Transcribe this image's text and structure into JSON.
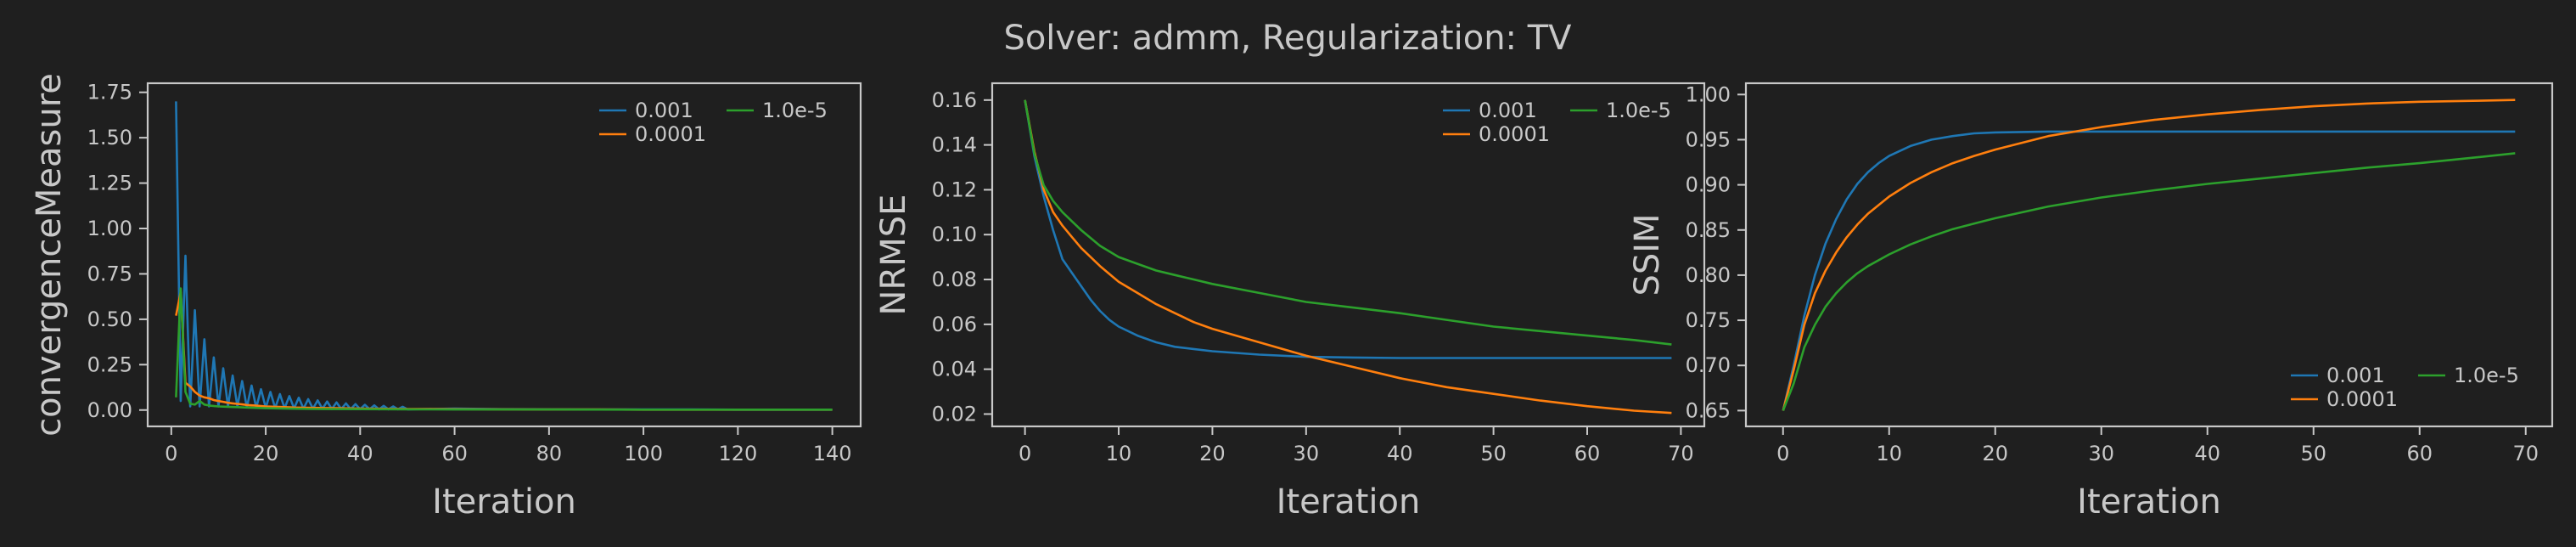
{
  "suptitle": "Solver: admm, Regularization: TV",
  "chart_data": [
    {
      "type": "line",
      "title": "",
      "xlabel": "Iteration",
      "ylabel": "convergenceMeasure",
      "xlim": [
        -5,
        146
      ],
      "ylim": [
        -0.09,
        1.8
      ],
      "xticks": [
        0,
        20,
        40,
        60,
        80,
        100,
        120,
        140
      ],
      "xtick_labels": [
        "0",
        "20",
        "40",
        "60",
        "80",
        "100",
        "120",
        "140"
      ],
      "yticks": [
        0.0,
        0.25,
        0.5,
        0.75,
        1.0,
        1.25,
        1.5,
        1.75
      ],
      "ytick_labels": [
        "0.00",
        "0.25",
        "0.50",
        "0.75",
        "1.00",
        "1.25",
        "1.50",
        "1.75"
      ],
      "legend_loc": "upper-right",
      "legend_cols": 2,
      "series": [
        {
          "name": "0.001",
          "color": "#1f77b4",
          "x": [
            1,
            2,
            3,
            4,
            5,
            6,
            7,
            8,
            9,
            10,
            11,
            12,
            13,
            14,
            15,
            16,
            17,
            18,
            19,
            20,
            21,
            22,
            23,
            24,
            25,
            26,
            27,
            28,
            29,
            30,
            31,
            32,
            33,
            34,
            35,
            36,
            37,
            38,
            39,
            40,
            41,
            42,
            43,
            44,
            45,
            46,
            47,
            48,
            49,
            50,
            60,
            70,
            80,
            90,
            100,
            110,
            120,
            130,
            140
          ],
          "y": [
            1.7,
            0.05,
            0.85,
            0.02,
            0.55,
            0.02,
            0.39,
            0.02,
            0.29,
            0.02,
            0.23,
            0.02,
            0.19,
            0.02,
            0.16,
            0.015,
            0.135,
            0.013,
            0.115,
            0.012,
            0.1,
            0.011,
            0.088,
            0.01,
            0.077,
            0.009,
            0.068,
            0.008,
            0.06,
            0.008,
            0.053,
            0.007,
            0.047,
            0.006,
            0.042,
            0.006,
            0.037,
            0.005,
            0.033,
            0.005,
            0.029,
            0.005,
            0.026,
            0.004,
            0.023,
            0.004,
            0.02,
            0.004,
            0.018,
            0.004,
            0.008,
            0.005,
            0.004,
            0.003,
            0.003,
            0.003,
            0.002,
            0.002,
            0.002
          ]
        },
        {
          "name": "0.0001",
          "color": "#ff7f0e",
          "x": [
            1,
            2,
            3,
            4,
            5,
            6,
            7,
            8,
            9,
            10,
            11,
            12,
            13,
            14,
            15,
            16,
            17,
            18,
            19,
            20,
            22,
            24,
            26,
            28,
            30,
            35,
            40,
            50,
            60,
            70,
            80,
            90,
            100,
            110,
            120,
            130,
            140
          ],
          "y": [
            0.52,
            0.65,
            0.15,
            0.13,
            0.1,
            0.08,
            0.07,
            0.065,
            0.055,
            0.05,
            0.045,
            0.04,
            0.037,
            0.034,
            0.031,
            0.028,
            0.026,
            0.024,
            0.022,
            0.02,
            0.018,
            0.016,
            0.014,
            0.013,
            0.012,
            0.01,
            0.008,
            0.006,
            0.005,
            0.004,
            0.003,
            0.003,
            0.002,
            0.002,
            0.002,
            0.002,
            0.002
          ]
        },
        {
          "name": "1.0e-5",
          "color": "#2ca02c",
          "x": [
            1,
            2,
            3,
            4,
            5,
            6,
            7,
            8,
            10,
            12,
            14,
            16,
            18,
            20,
            25,
            30,
            40,
            50,
            60,
            80,
            100,
            120,
            140
          ],
          "y": [
            0.07,
            0.67,
            0.1,
            0.035,
            0.03,
            0.05,
            0.03,
            0.025,
            0.02,
            0.018,
            0.016,
            0.014,
            0.012,
            0.01,
            0.008,
            0.006,
            0.005,
            0.004,
            0.003,
            0.003,
            0.002,
            0.002,
            0.002
          ]
        }
      ]
    },
    {
      "type": "line",
      "title": "",
      "xlabel": "Iteration",
      "ylabel": "NRMSE",
      "xlim": [
        -3.5,
        72.5
      ],
      "ylim": [
        0.0145,
        0.1675
      ],
      "xticks": [
        0,
        10,
        20,
        30,
        40,
        50,
        60,
        70
      ],
      "xtick_labels": [
        "0",
        "10",
        "20",
        "30",
        "40",
        "50",
        "60",
        "70"
      ],
      "yticks": [
        0.02,
        0.04,
        0.06,
        0.08,
        0.1,
        0.12,
        0.14,
        0.16
      ],
      "ytick_labels": [
        "0.02",
        "0.04",
        "0.06",
        "0.08",
        "0.10",
        "0.12",
        "0.14",
        "0.16"
      ],
      "legend_loc": "upper-right",
      "legend_cols": 2,
      "series": [
        {
          "name": "0.001",
          "color": "#1f77b4",
          "x": [
            0,
            1,
            2,
            3,
            4,
            5,
            6,
            7,
            8,
            9,
            10,
            12,
            14,
            16,
            18,
            20,
            25,
            30,
            35,
            40,
            50,
            60,
            69
          ],
          "y": [
            0.16,
            0.135,
            0.117,
            0.102,
            0.089,
            0.083,
            0.077,
            0.071,
            0.066,
            0.062,
            0.059,
            0.055,
            0.052,
            0.05,
            0.049,
            0.048,
            0.0465,
            0.0455,
            0.0452,
            0.045,
            0.045,
            0.045,
            0.045
          ]
        },
        {
          "name": "0.0001",
          "color": "#ff7f0e",
          "x": [
            0,
            1,
            2,
            3,
            4,
            5,
            6,
            8,
            10,
            12,
            14,
            16,
            18,
            20,
            25,
            30,
            35,
            40,
            45,
            50,
            55,
            60,
            65,
            69
          ],
          "y": [
            0.16,
            0.137,
            0.12,
            0.11,
            0.104,
            0.099,
            0.094,
            0.086,
            0.079,
            0.074,
            0.069,
            0.065,
            0.061,
            0.058,
            0.052,
            0.046,
            0.041,
            0.036,
            0.032,
            0.029,
            0.026,
            0.0235,
            0.0215,
            0.0205
          ]
        },
        {
          "name": "1.0e-5",
          "color": "#2ca02c",
          "x": [
            0,
            1,
            2,
            3,
            4,
            5,
            6,
            8,
            10,
            12,
            14,
            16,
            18,
            20,
            25,
            30,
            35,
            40,
            45,
            50,
            55,
            60,
            65,
            69
          ],
          "y": [
            0.16,
            0.136,
            0.122,
            0.115,
            0.11,
            0.106,
            0.102,
            0.095,
            0.09,
            0.087,
            0.084,
            0.082,
            0.08,
            0.078,
            0.074,
            0.07,
            0.0675,
            0.065,
            0.062,
            0.059,
            0.057,
            0.055,
            0.053,
            0.051
          ]
        }
      ]
    },
    {
      "type": "line",
      "title": "",
      "xlabel": "Iteration",
      "ylabel": "SSIM",
      "xlim": [
        -3.5,
        72.5
      ],
      "ylim": [
        0.6325,
        1.0125
      ],
      "xticks": [
        0,
        10,
        20,
        30,
        40,
        50,
        60,
        70
      ],
      "xtick_labels": [
        "0",
        "10",
        "20",
        "30",
        "40",
        "50",
        "60",
        "70"
      ],
      "yticks": [
        0.65,
        0.7,
        0.75,
        0.8,
        0.85,
        0.9,
        0.95,
        1.0
      ],
      "ytick_labels": [
        "0.65",
        "0.70",
        "0.75",
        "0.80",
        "0.85",
        "0.90",
        "0.95",
        "1.00"
      ],
      "legend_loc": "lower-right",
      "legend_cols": 2,
      "series": [
        {
          "name": "0.001",
          "color": "#1f77b4",
          "x": [
            0,
            1,
            2,
            3,
            4,
            5,
            6,
            7,
            8,
            9,
            10,
            12,
            14,
            16,
            18,
            20,
            25,
            30,
            40,
            50,
            60,
            69
          ],
          "y": [
            0.65,
            0.7,
            0.755,
            0.8,
            0.835,
            0.862,
            0.884,
            0.901,
            0.914,
            0.924,
            0.932,
            0.943,
            0.95,
            0.954,
            0.957,
            0.958,
            0.959,
            0.959,
            0.959,
            0.959,
            0.959,
            0.959
          ]
        },
        {
          "name": "0.0001",
          "color": "#ff7f0e",
          "x": [
            0,
            1,
            2,
            3,
            4,
            5,
            6,
            7,
            8,
            10,
            12,
            14,
            16,
            18,
            20,
            25,
            30,
            35,
            40,
            45,
            50,
            55,
            60,
            65,
            69
          ],
          "y": [
            0.65,
            0.695,
            0.745,
            0.78,
            0.805,
            0.825,
            0.842,
            0.856,
            0.868,
            0.887,
            0.902,
            0.914,
            0.924,
            0.932,
            0.939,
            0.954,
            0.964,
            0.972,
            0.978,
            0.983,
            0.987,
            0.99,
            0.992,
            0.993,
            0.994
          ]
        },
        {
          "name": "1.0e-5",
          "color": "#2ca02c",
          "x": [
            0,
            1,
            2,
            3,
            4,
            5,
            6,
            7,
            8,
            10,
            12,
            14,
            16,
            18,
            20,
            25,
            30,
            35,
            40,
            45,
            50,
            55,
            60,
            65,
            69
          ],
          "y": [
            0.65,
            0.68,
            0.72,
            0.745,
            0.765,
            0.78,
            0.792,
            0.802,
            0.81,
            0.823,
            0.834,
            0.843,
            0.851,
            0.857,
            0.863,
            0.876,
            0.886,
            0.894,
            0.901,
            0.907,
            0.913,
            0.919,
            0.924,
            0.93,
            0.935
          ]
        }
      ]
    }
  ]
}
